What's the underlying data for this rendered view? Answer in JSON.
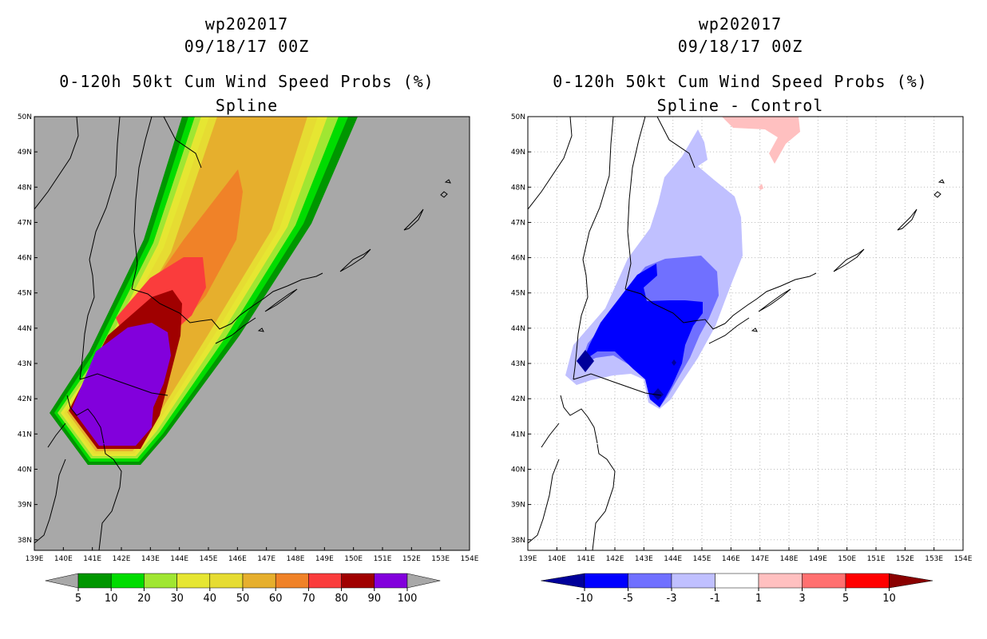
{
  "panels": [
    {
      "id": "left",
      "storm_id": "wp202017",
      "datetime": "09/18/17 00Z",
      "product_title": "0-120h 50kt Cum Wind Speed Probs (%)",
      "subtitle": "Spline",
      "background_color": "#a8a8a8",
      "colorbar": {
        "labels": [
          "5",
          "10",
          "20",
          "30",
          "40",
          "50",
          "60",
          "70",
          "80",
          "90",
          "100"
        ],
        "colors": [
          "#009600",
          "#00dc00",
          "#a0e632",
          "#e6e632",
          "#e6dc32",
          "#e6af2d",
          "#f08228",
          "#fa3c3c",
          "#a00000",
          "#8200dc"
        ],
        "arrow_color": "#a8a8a8"
      }
    },
    {
      "id": "right",
      "storm_id": "wp202017",
      "datetime": "09/18/17 00Z",
      "product_title": "0-120h 50kt Cum Wind Speed Probs (%)",
      "subtitle": "Spline - Control",
      "background_color": "#ffffff",
      "colorbar": {
        "labels": [
          "-10",
          "-5",
          "-3",
          "-1",
          "1",
          "3",
          "5",
          "10"
        ],
        "colors": [
          "#0000ff",
          "#7070ff",
          "#c0c0ff",
          "#ffffff",
          "#ffc0c0",
          "#ff7070",
          "#ff0000"
        ],
        "left_arrow_color": "#00009a",
        "right_arrow_color": "#8a0000"
      }
    }
  ],
  "map": {
    "lon_labels": [
      "139E",
      "140E",
      "141E",
      "142E",
      "143E",
      "144E",
      "145E",
      "146E",
      "147E",
      "148E",
      "149E",
      "150E",
      "151E",
      "152E",
      "153E",
      "154E"
    ],
    "lat_labels": [
      "38N",
      "39N",
      "40N",
      "41N",
      "42N",
      "43N",
      "44N",
      "45N",
      "46N",
      "47N",
      "48N",
      "49N",
      "50N"
    ],
    "lon_range": [
      139,
      154
    ],
    "lat_range": [
      37.7,
      50
    ]
  }
}
